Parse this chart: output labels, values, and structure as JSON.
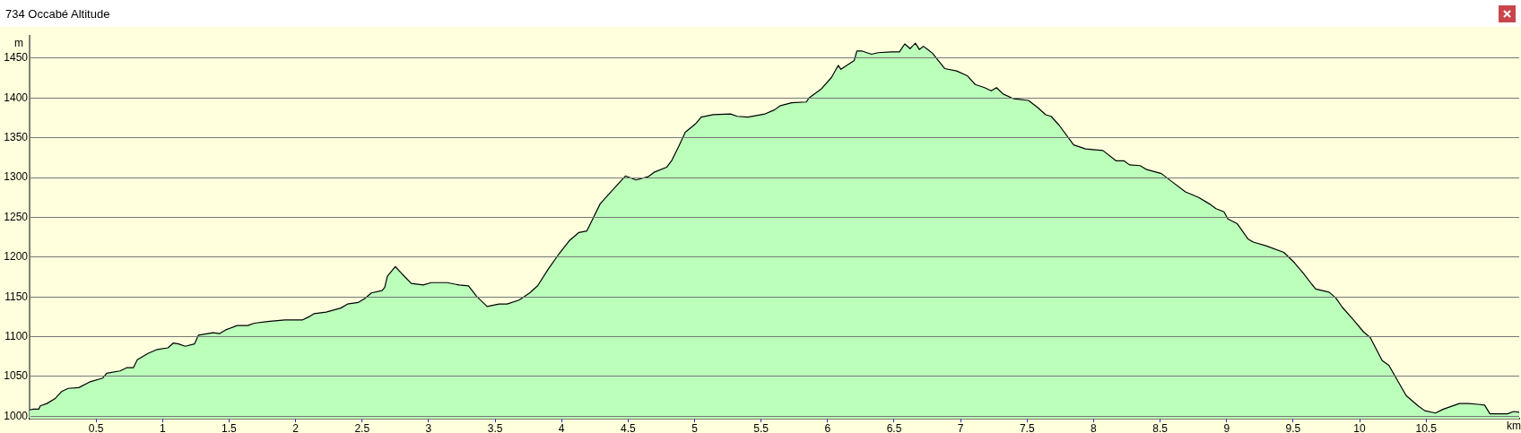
{
  "chart_data": {
    "type": "area",
    "title": "734 Occabé Altitude",
    "xlabel": "km",
    "ylabel": "m",
    "x": [
      0,
      0.03,
      0.07,
      0.08,
      0.13,
      0.19,
      0.24,
      0.29,
      0.37,
      0.45,
      0.55,
      0.58,
      0.68,
      0.73,
      0.78,
      0.81,
      0.89,
      0.96,
      1.04,
      1.08,
      1.12,
      1.17,
      1.24,
      1.27,
      1.38,
      1.43,
      1.48,
      1.56,
      1.64,
      1.69,
      1.79,
      1.92,
      2.05,
      2.1,
      2.14,
      2.23,
      2.34,
      2.39,
      2.47,
      2.52,
      2.57,
      2.65,
      2.67,
      2.69,
      2.75,
      2.8,
      2.87,
      2.96,
      3.02,
      3.14,
      3.23,
      3.3,
      3.36,
      3.44,
      3.53,
      3.59,
      3.68,
      3.76,
      3.82,
      3.9,
      3.98,
      4.06,
      4.13,
      4.19,
      4.24,
      4.29,
      4.37,
      4.43,
      4.48,
      4.56,
      4.65,
      4.7,
      4.79,
      4.83,
      4.88,
      4.93,
      5.01,
      5.05,
      5.14,
      5.27,
      5.32,
      5.4,
      5.53,
      5.6,
      5.64,
      5.73,
      5.84,
      5.86,
      5.95,
      6.03,
      6.08,
      6.1,
      6.2,
      6.22,
      6.26,
      6.33,
      6.38,
      6.48,
      6.54,
      6.58,
      6.62,
      6.66,
      6.69,
      6.72,
      6.76,
      6.79,
      6.88,
      6.97,
      7.05,
      7.11,
      7.18,
      7.23,
      7.27,
      7.32,
      7.4,
      7.51,
      7.58,
      7.64,
      7.68,
      7.74,
      7.85,
      7.94,
      8.07,
      8.17,
      8.23,
      8.27,
      8.35,
      8.4,
      8.51,
      8.58,
      8.69,
      8.79,
      8.87,
      8.92,
      8.98,
      9.01,
      9.08,
      9.16,
      9.2,
      9.3,
      9.43,
      9.51,
      9.58,
      9.64,
      9.67,
      9.77,
      9.82,
      9.87,
      9.95,
      10.03,
      10.08,
      10.17,
      10.22,
      10.35,
      10.44,
      10.49,
      10.57,
      10.63,
      10.75,
      10.82,
      10.89,
      10.94,
      10.98,
      11.11,
      11.16,
      11.2
    ],
    "series": [
      {
        "color": "#bbffbb",
        "values": [
          1008,
          1009,
          1009,
          1013,
          1016,
          1022,
          1031,
          1035,
          1036,
          1043,
          1048,
          1054,
          1057,
          1061,
          1061,
          1071,
          1079,
          1084,
          1086,
          1092,
          1091,
          1088,
          1091,
          1102,
          1105,
          1104,
          1109,
          1114,
          1114,
          1117,
          1119,
          1121,
          1121,
          1125,
          1129,
          1131,
          1136,
          1141,
          1143,
          1148,
          1155,
          1158,
          1162,
          1176,
          1188,
          1179,
          1167,
          1165,
          1168,
          1168,
          1165,
          1164,
          1151,
          1138,
          1141,
          1141,
          1146,
          1155,
          1164,
          1185,
          1204,
          1221,
          1231,
          1233,
          1250,
          1267,
          1282,
          1293,
          1302,
          1297,
          1301,
          1307,
          1313,
          1322,
          1339,
          1357,
          1368,
          1376,
          1379,
          1380,
          1377,
          1376,
          1380,
          1385,
          1390,
          1394,
          1395,
          1400,
          1411,
          1426,
          1441,
          1436,
          1447,
          1459,
          1459,
          1455,
          1457,
          1458,
          1458,
          1468,
          1462,
          1469,
          1461,
          1465,
          1460,
          1456,
          1437,
          1434,
          1428,
          1417,
          1413,
          1409,
          1413,
          1405,
          1399,
          1397,
          1388,
          1379,
          1377,
          1366,
          1341,
          1336,
          1334,
          1321,
          1321,
          1316,
          1315,
          1310,
          1305,
          1296,
          1282,
          1275,
          1267,
          1261,
          1257,
          1248,
          1242,
          1223,
          1219,
          1214,
          1206,
          1193,
          1179,
          1166,
          1160,
          1156,
          1149,
          1137,
          1122,
          1106,
          1099,
          1070,
          1064,
          1026,
          1013,
          1007,
          1004,
          1009,
          1016,
          1016,
          1015,
          1014,
          1003,
          1003,
          1006,
          1005
        ]
      }
    ],
    "xlim": [
      0,
      11.2
    ],
    "ylim": [
      997,
      1479
    ],
    "xticks": [
      0.5,
      1,
      1.5,
      2,
      2.5,
      3,
      3.5,
      4,
      4.5,
      5,
      5.5,
      6,
      6.5,
      7,
      7.5,
      8,
      8.5,
      9,
      9.5,
      10,
      10.5
    ],
    "yticks": [
      1000,
      1050,
      1100,
      1150,
      1200,
      1250,
      1300,
      1350,
      1400,
      1450
    ],
    "grid": "y",
    "line_style": "solid",
    "marker": "none",
    "legend": false
  }
}
